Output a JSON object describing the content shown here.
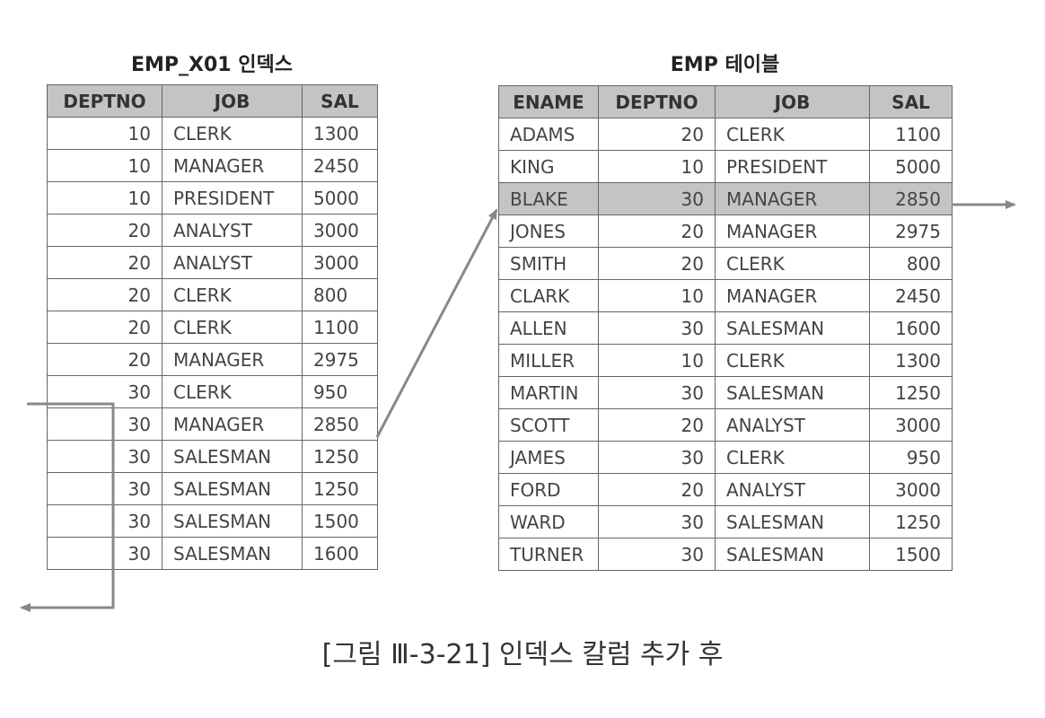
{
  "index_table": {
    "title": "EMP_X01 인덱스",
    "columns": [
      "DEPTNO",
      "JOB",
      "SAL"
    ],
    "rows": [
      [
        "10",
        "CLERK",
        "1300"
      ],
      [
        "10",
        "MANAGER",
        "2450"
      ],
      [
        "10",
        "PRESIDENT",
        "5000"
      ],
      [
        "20",
        "ANALYST",
        "3000"
      ],
      [
        "20",
        "ANALYST",
        "3000"
      ],
      [
        "20",
        "CLERK",
        "800"
      ],
      [
        "20",
        "CLERK",
        "1100"
      ],
      [
        "20",
        "MANAGER",
        "2975"
      ],
      [
        "30",
        "CLERK",
        "950"
      ],
      [
        "30",
        "MANAGER",
        "2850"
      ],
      [
        "30",
        "SALESMAN",
        "1250"
      ],
      [
        "30",
        "SALESMAN",
        "1250"
      ],
      [
        "30",
        "SALESMAN",
        "1500"
      ],
      [
        "30",
        "SALESMAN",
        "1600"
      ]
    ]
  },
  "emp_table": {
    "title": "EMP 테이블",
    "columns": [
      "ENAME",
      "DEPTNO",
      "JOB",
      "SAL"
    ],
    "highlighted_row": 2,
    "rows": [
      [
        "ADAMS",
        "20",
        "CLERK",
        "1100"
      ],
      [
        "KING",
        "10",
        "PRESIDENT",
        "5000"
      ],
      [
        "BLAKE",
        "30",
        "MANAGER",
        "2850"
      ],
      [
        "JONES",
        "20",
        "MANAGER",
        "2975"
      ],
      [
        "SMITH",
        "20",
        "CLERK",
        "800"
      ],
      [
        "CLARK",
        "10",
        "MANAGER",
        "2450"
      ],
      [
        "ALLEN",
        "30",
        "SALESMAN",
        "1600"
      ],
      [
        "MILLER",
        "10",
        "CLERK",
        "1300"
      ],
      [
        "MARTIN",
        "30",
        "SALESMAN",
        "1250"
      ],
      [
        "SCOTT",
        "20",
        "ANALYST",
        "3000"
      ],
      [
        "JAMES",
        "30",
        "CLERK",
        "950"
      ],
      [
        "FORD",
        "20",
        "ANALYST",
        "3000"
      ],
      [
        "WARD",
        "30",
        "SALESMAN",
        "1250"
      ],
      [
        "TURNER",
        "30",
        "SALESMAN",
        "1500"
      ]
    ]
  },
  "caption": "[그림 Ⅲ-3-21] 인덱스 칼럼 추가 후",
  "colors": {
    "header_bg": "#c4c4c4",
    "highlight_bg": "#c4c4c4",
    "arrow": "#888888",
    "border": "#666666"
  }
}
